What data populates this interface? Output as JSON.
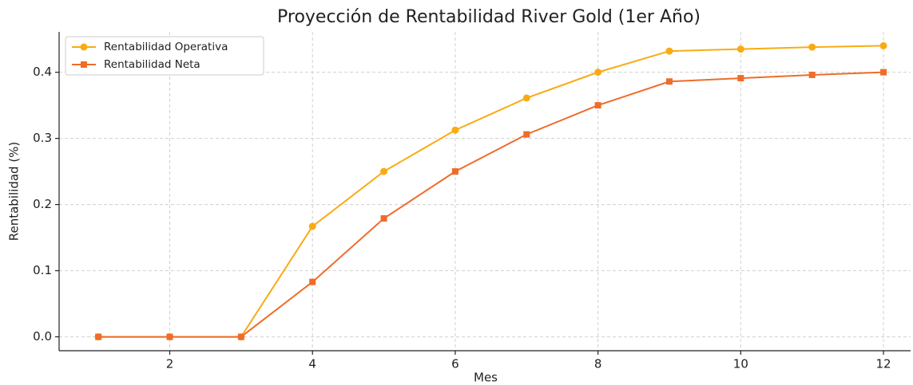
{
  "chart_data": {
    "type": "line",
    "title": "Proyección de Rentabilidad River Gold (1er Año)",
    "xlabel": "Mes",
    "ylabel": "Rentabilidad (%)",
    "x": [
      1,
      2,
      3,
      4,
      5,
      6,
      7,
      8,
      9,
      10,
      11,
      12
    ],
    "series": [
      {
        "name": "Rentabilidad Operativa",
        "color": "#f9ab14",
        "marker": "circle",
        "values": [
          0,
          0,
          0,
          0.167,
          0.25,
          0.3125,
          0.361,
          0.4,
          0.432,
          0.435,
          0.438,
          0.44
        ]
      },
      {
        "name": "Rentabilidad Neta",
        "color": "#ef6c2a",
        "marker": "square",
        "values": [
          0,
          0,
          0,
          0.083,
          0.179,
          0.25,
          0.306,
          0.35,
          0.386,
          0.391,
          0.396,
          0.4
        ]
      }
    ],
    "xlim": [
      0.45,
      12.38
    ],
    "ylim": [
      -0.021,
      0.461
    ],
    "xticks": [
      2,
      4,
      6,
      8,
      10,
      12
    ],
    "yticks": [
      {
        "value": 0,
        "label": "0.0"
      },
      0.1,
      0.2,
      0.3,
      0.4
    ],
    "grid": true,
    "legend": "upper left"
  }
}
